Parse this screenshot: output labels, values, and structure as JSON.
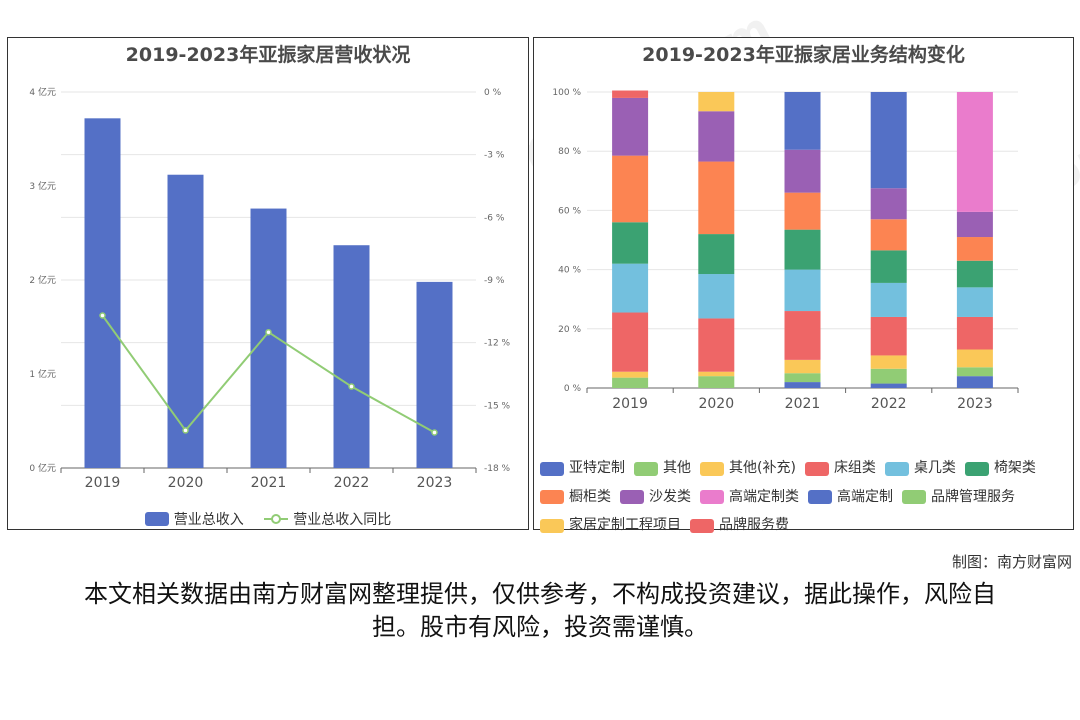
{
  "left_chart": {
    "title": "2019-2023年亚振家居营收状况",
    "legend": [
      "营业总收入",
      "营业总收入同比"
    ]
  },
  "right_chart": {
    "title": "2019-2023年亚振家居业务结构变化"
  },
  "credit": "制图：南方财富网",
  "disclaimer": "本文相关数据由南方财富网整理提供，仅供参考，不构成投资建议，据此操作，风险自担。股市有风险，投资需谨慎。",
  "watermark": "南方财富网 southmoney.com",
  "colors": {
    "bar": "#5470c6",
    "line": "#91cc75"
  },
  "chart_data": [
    {
      "type": "bar",
      "title": "2019-2023年亚振家居营收状况",
      "categories": [
        "2019",
        "2020",
        "2021",
        "2022",
        "2023"
      ],
      "y_left": {
        "unit": "亿元",
        "ticks": [
          "0 亿元",
          "1 亿元",
          "2 亿元",
          "3 亿元",
          "4 亿元"
        ],
        "ylim": [
          0,
          4
        ]
      },
      "y_right": {
        "unit": "%",
        "ticks": [
          "-18 %",
          "-15 %",
          "-12 %",
          "-9 %",
          "-6 %",
          "-3 %",
          "0 %"
        ],
        "ylim": [
          -18,
          0
        ]
      },
      "series": [
        {
          "name": "营业总收入",
          "type": "bar",
          "axis": "left",
          "color": "#5470c6",
          "values": [
            3.72,
            3.12,
            2.76,
            2.37,
            1.98
          ]
        },
        {
          "name": "营业总收入同比",
          "type": "line",
          "axis": "right",
          "color": "#91cc75",
          "values": [
            -10.7,
            -16.2,
            -11.5,
            -14.1,
            -16.3
          ]
        }
      ],
      "grid": true,
      "legend_position": "bottom"
    },
    {
      "type": "bar",
      "stacked": true,
      "title": "2019-2023年亚振家居业务结构变化",
      "categories": [
        "2019",
        "2020",
        "2021",
        "2022",
        "2023"
      ],
      "y_ticks": [
        "0 %",
        "20 %",
        "40 %",
        "60 %",
        "80 %",
        "100 %"
      ],
      "ylim": [
        0,
        100
      ],
      "series": [
        {
          "name": "亚特定制",
          "color": "#5470c6",
          "values": [
            0,
            0,
            2,
            1.5,
            4
          ]
        },
        {
          "name": "其他",
          "color": "#91cc75",
          "values": [
            3.5,
            4,
            3,
            5,
            3
          ]
        },
        {
          "name": "其他(补充)",
          "color": "#fac858",
          "values": [
            2,
            1.5,
            4.5,
            4.5,
            6
          ]
        },
        {
          "name": "床组类",
          "color": "#ee6666",
          "values": [
            20,
            18,
            16.5,
            13,
            11
          ]
        },
        {
          "name": "桌几类",
          "color": "#73c0de",
          "values": [
            16.5,
            15,
            14,
            11.5,
            10
          ]
        },
        {
          "name": "椅架类",
          "color": "#3ba272",
          "values": [
            14,
            13.5,
            13.5,
            11,
            9
          ]
        },
        {
          "name": "橱柜类",
          "color": "#fc8452",
          "values": [
            22.5,
            24.5,
            12.5,
            10.5,
            8
          ]
        },
        {
          "name": "沙发类",
          "color": "#9a60b4",
          "values": [
            19.5,
            17,
            14.5,
            10.5,
            8.5
          ]
        },
        {
          "name": "高端定制类",
          "color": "#ea7ccc",
          "values": [
            0,
            0,
            0,
            0,
            40.5
          ]
        },
        {
          "name": "高端定制",
          "color": "#5470c6",
          "values": [
            0,
            0,
            19.5,
            32.5,
            0
          ]
        },
        {
          "name": "品牌管理服务",
          "color": "#91cc75",
          "values": [
            0,
            0,
            0,
            0,
            0
          ]
        },
        {
          "name": "家居定制工程项目",
          "color": "#fac858",
          "values": [
            0,
            6.5,
            0,
            0,
            0
          ]
        },
        {
          "name": "品牌服务费",
          "color": "#ee6666",
          "values": [
            2.5,
            0,
            0,
            0,
            0
          ]
        }
      ],
      "grid": true,
      "legend_position": "bottom"
    }
  ]
}
